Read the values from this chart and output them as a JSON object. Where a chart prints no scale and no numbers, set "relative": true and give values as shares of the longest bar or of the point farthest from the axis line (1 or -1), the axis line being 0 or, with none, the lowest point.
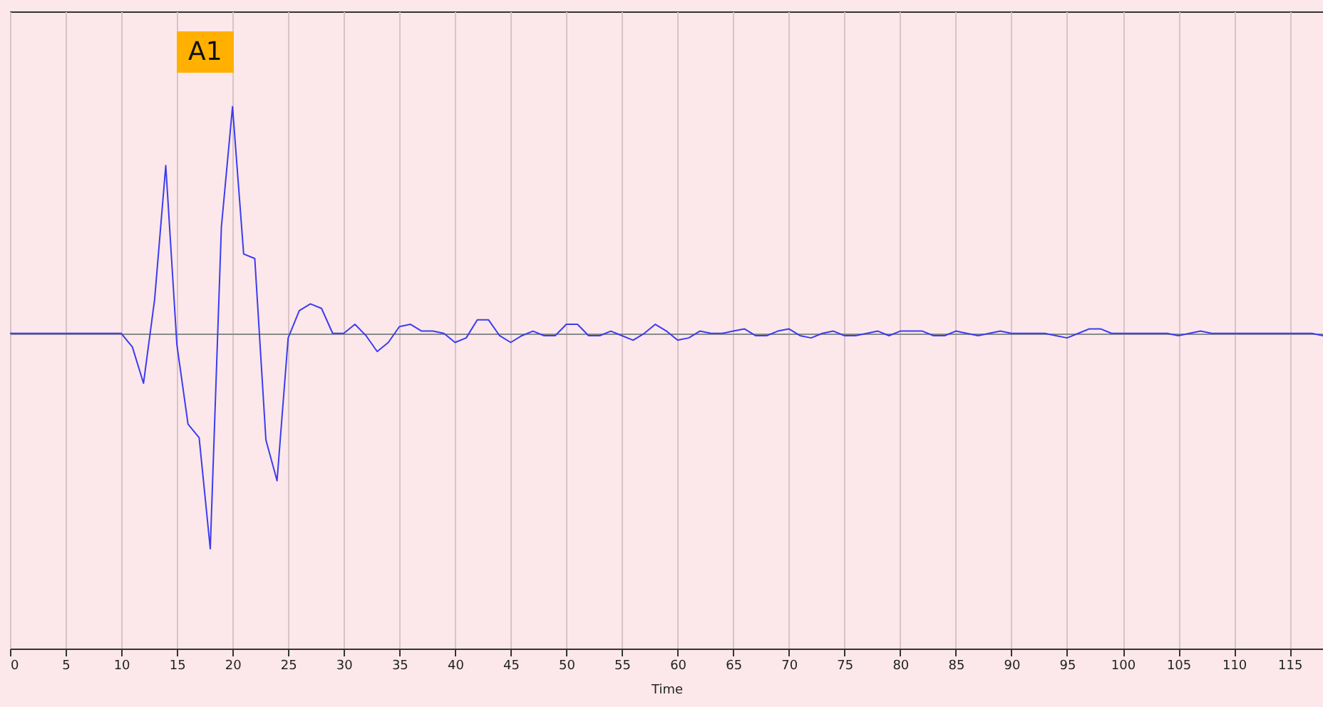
{
  "chart_data": {
    "type": "line",
    "relative": true,
    "xlabel": "Time",
    "annotations": [
      "A1"
    ],
    "grid": "x",
    "xlim": [
      0,
      118
    ],
    "xticks": [
      0,
      5,
      10,
      15,
      20,
      25,
      30,
      35,
      40,
      45,
      50,
      55,
      60,
      65,
      70,
      75,
      80,
      85,
      90,
      95,
      100,
      105,
      110,
      115
    ],
    "x": [
      0,
      1,
      2,
      3,
      4,
      5,
      6,
      7,
      8,
      9,
      10,
      11,
      12,
      13,
      14,
      15,
      16,
      17,
      18,
      19,
      20,
      21,
      22,
      23,
      24,
      25,
      26,
      27,
      28,
      29,
      30,
      31,
      32,
      33,
      34,
      35,
      36,
      37,
      38,
      39,
      40,
      41,
      42,
      43,
      44,
      45,
      46,
      47,
      48,
      49,
      50,
      51,
      52,
      53,
      54,
      55,
      56,
      57,
      58,
      59,
      60,
      61,
      62,
      63,
      64,
      65,
      66,
      67,
      68,
      69,
      70,
      71,
      72,
      73,
      74,
      75,
      76,
      77,
      78,
      79,
      80,
      81,
      82,
      83,
      84,
      85,
      86,
      87,
      88,
      89,
      90,
      91,
      92,
      93,
      94,
      95,
      96,
      97,
      98,
      99,
      100,
      101,
      102,
      103,
      104,
      105,
      106,
      107,
      108,
      109,
      110,
      111,
      112,
      113,
      114,
      115,
      116,
      117,
      118
    ],
    "series": [
      {
        "color": "#3c3cf0",
        "values": [
          0,
          0,
          0,
          0,
          0,
          0,
          0,
          0,
          0,
          0,
          0,
          -0.06,
          -0.22,
          0.15,
          0.74,
          -0.05,
          -0.4,
          -0.46,
          -0.95,
          0.47,
          1,
          0.35,
          0.33,
          -0.47,
          -0.65,
          -0.02,
          0.1,
          0.13,
          0.11,
          0,
          0,
          0.04,
          -0.01,
          -0.08,
          -0.04,
          0.03,
          0.04,
          0.01,
          0.01,
          0,
          -0.04,
          -0.02,
          0.06,
          0.06,
          -0.01,
          -0.04,
          -0.01,
          0.01,
          -0.01,
          -0.01,
          0.04,
          0.04,
          -0.01,
          -0.01,
          0.01,
          -0.01,
          -0.03,
          0,
          0.04,
          0.01,
          -0.03,
          -0.02,
          0.01,
          0,
          0,
          0.01,
          0.02,
          -0.01,
          -0.01,
          0.01,
          0.02,
          -0.01,
          -0.02,
          0,
          0.01,
          -0.01,
          -0.01,
          0,
          0.01,
          -0.01,
          0.01,
          0.01,
          0.01,
          -0.01,
          -0.01,
          0.01,
          0,
          -0.01,
          0,
          0.01,
          0,
          0,
          0,
          0,
          -0.01,
          -0.02,
          0,
          0.02,
          0.02,
          0,
          0,
          0,
          0,
          0,
          0,
          -0.01,
          0,
          0.01,
          0,
          0,
          0,
          0,
          0,
          0,
          0,
          0,
          0,
          0,
          -0.01
        ]
      }
    ]
  }
}
